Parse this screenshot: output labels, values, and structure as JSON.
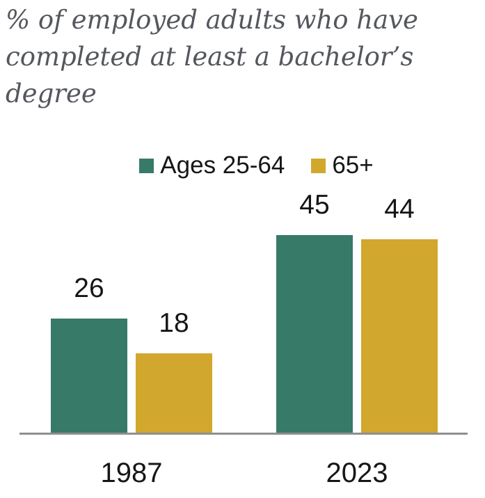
{
  "header": {
    "title": "% of employed adults who have completed at least a bachelor’s degree",
    "title_lines": [
      "% of employed adults who have",
      "completed at least a bachelor’s",
      "degree"
    ]
  },
  "chart_data": {
    "type": "bar",
    "title": "% of employed adults who have completed at least a bachelor’s degree",
    "categories": [
      "1987",
      "2023"
    ],
    "series": [
      {
        "name": "Ages 25-64",
        "color": "#377a68",
        "values": [
          26,
          45
        ]
      },
      {
        "name": "65+",
        "color": "#d1a72e",
        "values": [
          18,
          44
        ]
      }
    ],
    "ylim": [
      0,
      50
    ],
    "grid": false,
    "value_labels": true,
    "legend_position": "top",
    "xlabel": "",
    "ylabel": ""
  },
  "colors": {
    "series_green": "#377a68",
    "series_gold": "#d1a72e",
    "axis_line": "#8f8f8f",
    "title_text": "#54575e",
    "label_text": "#161616"
  }
}
